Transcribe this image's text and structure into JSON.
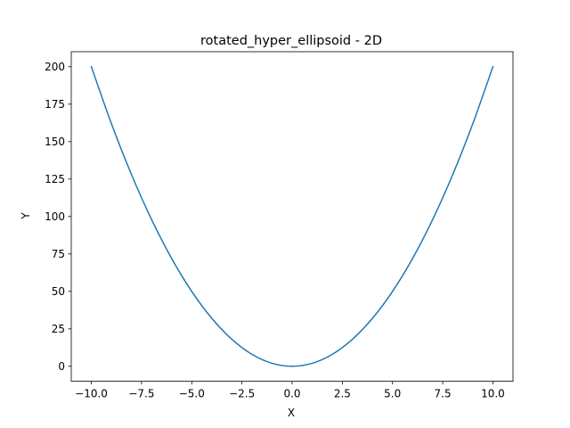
{
  "chart_data": {
    "type": "line",
    "title": "rotated_hyper_ellipsoid - 2D",
    "xlabel": "X",
    "ylabel": "Y",
    "xlim": [
      -11,
      11
    ],
    "ylim": [
      -10,
      210
    ],
    "grid": false,
    "x_ticks": [
      {
        "value": -10.0,
        "label": "−10.0"
      },
      {
        "value": -7.5,
        "label": "−7.5"
      },
      {
        "value": -5.0,
        "label": "−5.0"
      },
      {
        "value": -2.5,
        "label": "−2.5"
      },
      {
        "value": 0.0,
        "label": "0.0"
      },
      {
        "value": 2.5,
        "label": "2.5"
      },
      {
        "value": 5.0,
        "label": "5.0"
      },
      {
        "value": 7.5,
        "label": "7.5"
      },
      {
        "value": 10.0,
        "label": "10.0"
      }
    ],
    "y_ticks": [
      {
        "value": 0,
        "label": "0"
      },
      {
        "value": 25,
        "label": "25"
      },
      {
        "value": 50,
        "label": "50"
      },
      {
        "value": 75,
        "label": "75"
      },
      {
        "value": 100,
        "label": "100"
      },
      {
        "value": 125,
        "label": "125"
      },
      {
        "value": 150,
        "label": "150"
      },
      {
        "value": 175,
        "label": "175"
      },
      {
        "value": 200,
        "label": "200"
      }
    ],
    "series": [
      {
        "color": "#1f77b4",
        "x": [
          -10,
          -9,
          -8,
          -7,
          -6,
          -5,
          -4,
          -3,
          -2,
          -1,
          0,
          1,
          2,
          3,
          4,
          5,
          6,
          7,
          8,
          9,
          10
        ],
        "y": [
          200,
          162,
          128,
          98,
          72,
          50,
          32,
          18,
          8,
          2,
          0,
          2,
          8,
          18,
          32,
          50,
          72,
          98,
          128,
          162,
          200
        ]
      }
    ]
  }
}
